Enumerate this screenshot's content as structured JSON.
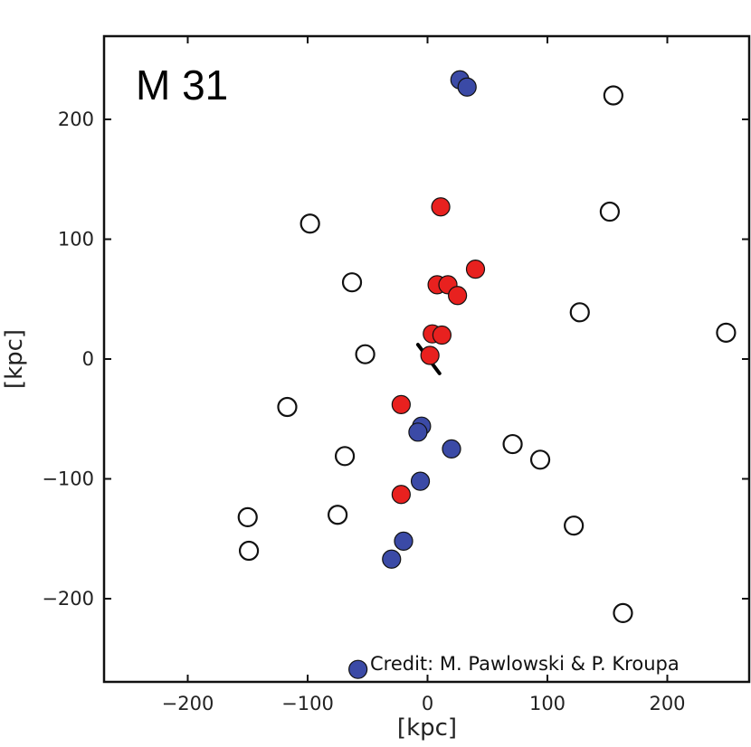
{
  "chart_data": {
    "type": "scatter",
    "title": "",
    "panel_label": "M 31",
    "credit": "Credit: M. Pawlowski & P. Kroupa",
    "xlabel": "[kpc]",
    "ylabel": "[kpc]",
    "xlim": [
      -270,
      270
    ],
    "ylim": [
      -270,
      270
    ],
    "xticks": [
      -200,
      -100,
      0,
      100,
      200
    ],
    "yticks": [
      -200,
      -100,
      0,
      100,
      200
    ],
    "xtick_labels": [
      "−200",
      "−100",
      "0",
      "100",
      "200"
    ],
    "ytick_labels": [
      "−200",
      "−100",
      "0",
      "100",
      "200"
    ],
    "grid": false,
    "legend": "none",
    "colors": {
      "red": "#e8211f",
      "blue": "#3b4aa6",
      "open": "#ffffff",
      "edge": "#111111"
    },
    "series": [
      {
        "color": "open",
        "points": [
          [
            155,
            220
          ],
          [
            152,
            123
          ],
          [
            -98,
            113
          ],
          [
            -63,
            64
          ],
          [
            127,
            39
          ],
          [
            249,
            22
          ],
          [
            -52,
            4
          ],
          [
            -117,
            -40
          ],
          [
            -69,
            -81
          ],
          [
            71,
            -71
          ],
          [
            94,
            -84
          ],
          [
            -75,
            -130
          ],
          [
            -150,
            -132
          ],
          [
            -149,
            -160
          ],
          [
            122,
            -139
          ],
          [
            163,
            -212
          ]
        ]
      },
      {
        "color": "red",
        "points": [
          [
            11,
            127
          ],
          [
            40,
            75
          ],
          [
            8,
            62
          ],
          [
            17,
            62
          ],
          [
            25,
            53
          ],
          [
            4,
            21
          ],
          [
            12,
            20
          ],
          [
            2,
            3
          ],
          [
            -22,
            -38
          ],
          [
            -22,
            -113
          ]
        ]
      },
      {
        "color": "blue",
        "points": [
          [
            27,
            233
          ],
          [
            33,
            227
          ],
          [
            -5,
            -56
          ],
          [
            -8,
            -61
          ],
          [
            20,
            -75
          ],
          [
            -6,
            -102
          ],
          [
            -20,
            -152
          ],
          [
            -30,
            -167
          ],
          [
            -58,
            -259
          ]
        ]
      }
    ],
    "annotations": [
      {
        "type": "line",
        "from": [
          -8,
          12
        ],
        "to": [
          10,
          -12
        ],
        "color": "#000000"
      }
    ]
  }
}
